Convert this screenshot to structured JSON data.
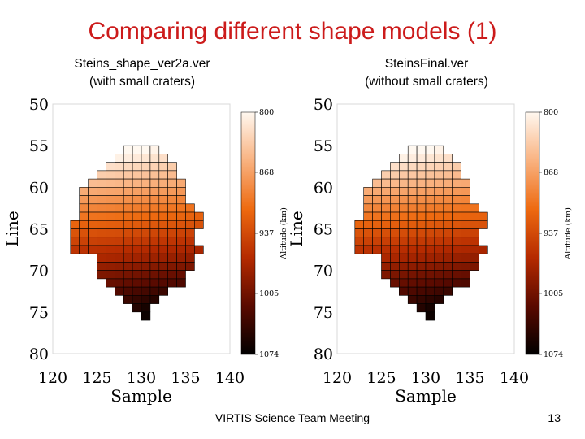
{
  "slide": {
    "title": "Comparing different shape models (1)",
    "footer_center": "VIRTIS Science Team Meeting",
    "page_number": "13"
  },
  "panels": [
    {
      "subtitle_line1": "Steins_shape_ver2a.ver",
      "subtitle_line2": "(with small craters)",
      "xlabel": "Sample",
      "ylabel": "Line",
      "colorbar_label": "Altitude (km)"
    },
    {
      "subtitle_line1": "SteinsFinal.ver",
      "subtitle_line2": "(without small craters)",
      "xlabel": "Sample",
      "ylabel": "Line",
      "colorbar_label": "Altitude (km)"
    }
  ],
  "chart_data": [
    {
      "type": "heatmap",
      "title": "Steins_shape_ver2a.ver",
      "xlabel": "Sample",
      "ylabel": "Line",
      "xlim": [
        120,
        140
      ],
      "ylim": [
        80,
        50
      ],
      "xticks": [
        "120",
        "125",
        "130",
        "135",
        "140"
      ],
      "yticks": [
        "50",
        "55",
        "60",
        "65",
        "70",
        "75",
        "80"
      ],
      "colorbar": {
        "label": "Altitude (km)",
        "ticks": [
          "800",
          "868",
          "937",
          "1005",
          "1074"
        ],
        "range": [
          800,
          1074
        ]
      },
      "colormap": [
        "#000000",
        "#5a0a00",
        "#b52a00",
        "#ee6a10",
        "#f9b280",
        "#fff8f0"
      ],
      "rows": [
        {
          "line": 55,
          "samples": [
            128,
            132
          ]
        },
        {
          "line": 56,
          "samples": [
            127,
            133
          ]
        },
        {
          "line": 57,
          "samples": [
            126,
            134
          ]
        },
        {
          "line": 58,
          "samples": [
            125,
            134
          ]
        },
        {
          "line": 59,
          "samples": [
            124,
            135
          ]
        },
        {
          "line": 60,
          "samples": [
            123,
            135
          ]
        },
        {
          "line": 61,
          "samples": [
            123,
            135
          ]
        },
        {
          "line": 62,
          "samples": [
            123,
            136
          ]
        },
        {
          "line": 63,
          "samples": [
            123,
            137
          ]
        },
        {
          "line": 64,
          "samples": [
            122,
            137
          ]
        },
        {
          "line": 65,
          "samples": [
            122,
            136
          ]
        },
        {
          "line": 66,
          "samples": [
            122,
            136
          ]
        },
        {
          "line": 67,
          "samples": [
            122,
            137
          ]
        },
        {
          "line": 68,
          "samples": [
            125,
            136
          ]
        },
        {
          "line": 69,
          "samples": [
            125,
            136
          ]
        },
        {
          "line": 70,
          "samples": [
            125,
            135
          ]
        },
        {
          "line": 71,
          "samples": [
            126,
            135
          ]
        },
        {
          "line": 72,
          "samples": [
            127,
            133
          ]
        },
        {
          "line": 73,
          "samples": [
            128,
            132
          ]
        },
        {
          "line": 74,
          "samples": [
            129,
            131
          ]
        },
        {
          "line": 75,
          "samples": [
            130,
            131
          ]
        }
      ]
    },
    {
      "type": "heatmap",
      "title": "SteinsFinal.ver",
      "xlabel": "Sample",
      "ylabel": "Line",
      "xlim": [
        120,
        140
      ],
      "ylim": [
        80,
        50
      ],
      "xticks": [
        "120",
        "125",
        "130",
        "135",
        "140"
      ],
      "yticks": [
        "50",
        "55",
        "60",
        "65",
        "70",
        "75",
        "80"
      ],
      "colorbar": {
        "label": "Altitude (km)",
        "ticks": [
          "800",
          "868",
          "937",
          "1005",
          "1074"
        ],
        "range": [
          800,
          1074
        ]
      },
      "colormap": [
        "#000000",
        "#5a0a00",
        "#b52a00",
        "#ee6a10",
        "#f9b280",
        "#fff8f0"
      ],
      "rows": [
        {
          "line": 55,
          "samples": [
            128,
            132
          ]
        },
        {
          "line": 56,
          "samples": [
            127,
            133
          ]
        },
        {
          "line": 57,
          "samples": [
            126,
            134
          ]
        },
        {
          "line": 58,
          "samples": [
            125,
            134
          ]
        },
        {
          "line": 59,
          "samples": [
            124,
            135
          ]
        },
        {
          "line": 60,
          "samples": [
            123,
            135
          ]
        },
        {
          "line": 61,
          "samples": [
            123,
            135
          ]
        },
        {
          "line": 62,
          "samples": [
            123,
            136
          ]
        },
        {
          "line": 63,
          "samples": [
            123,
            137
          ]
        },
        {
          "line": 64,
          "samples": [
            122,
            137
          ]
        },
        {
          "line": 65,
          "samples": [
            122,
            136
          ]
        },
        {
          "line": 66,
          "samples": [
            122,
            136
          ]
        },
        {
          "line": 67,
          "samples": [
            122,
            137
          ]
        },
        {
          "line": 68,
          "samples": [
            125,
            136
          ]
        },
        {
          "line": 69,
          "samples": [
            125,
            136
          ]
        },
        {
          "line": 70,
          "samples": [
            125,
            135
          ]
        },
        {
          "line": 71,
          "samples": [
            126,
            135
          ]
        },
        {
          "line": 72,
          "samples": [
            127,
            133
          ]
        },
        {
          "line": 73,
          "samples": [
            128,
            132
          ]
        },
        {
          "line": 74,
          "samples": [
            129,
            131
          ]
        },
        {
          "line": 75,
          "samples": [
            130,
            131
          ]
        }
      ]
    }
  ]
}
